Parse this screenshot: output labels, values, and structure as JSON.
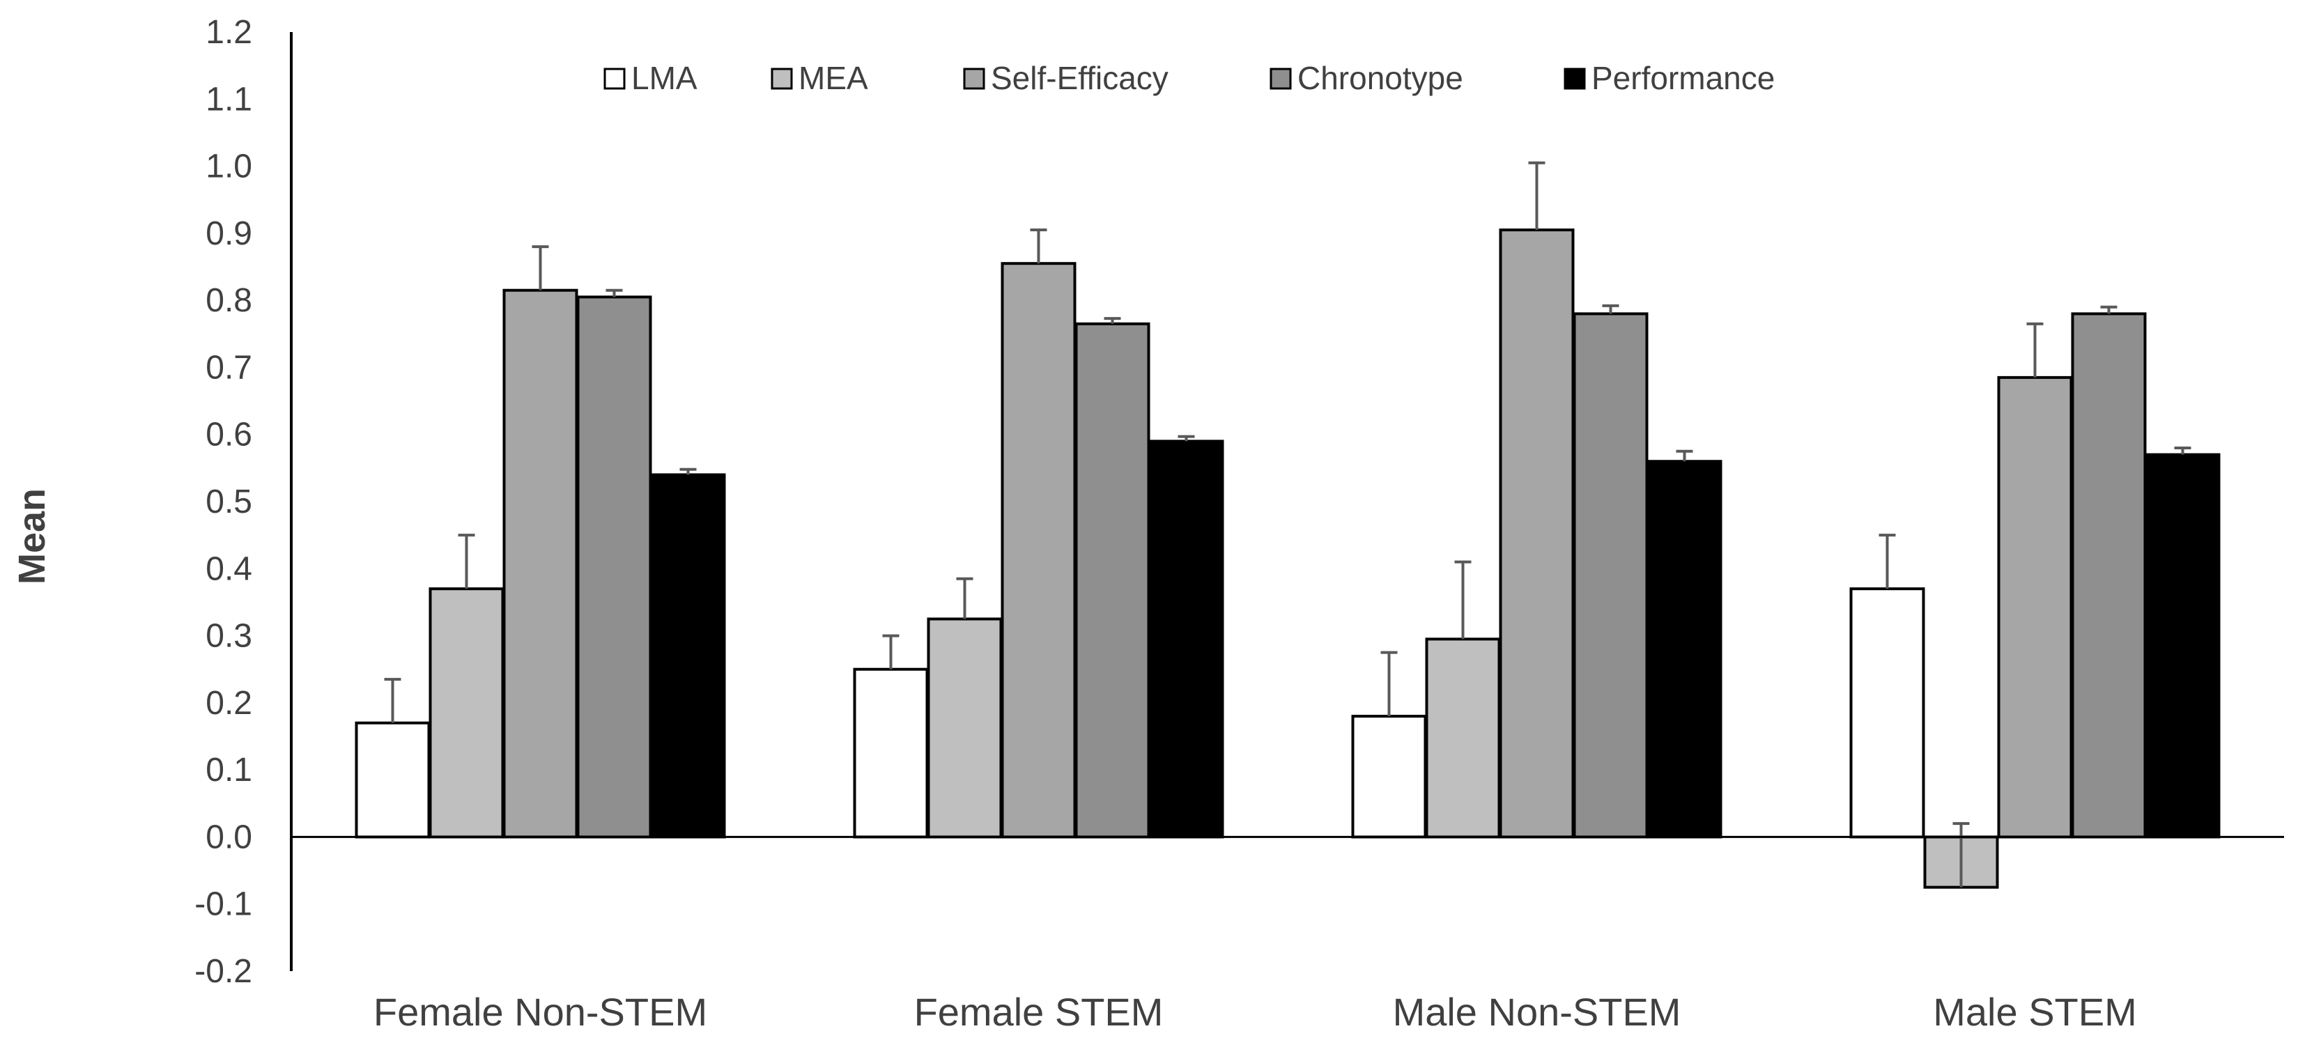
{
  "chart_data": {
    "type": "bar",
    "title": "",
    "xlabel": "",
    "ylabel": "Mean",
    "ylim": [
      -0.2,
      1.2
    ],
    "yticks": [
      "-0.2",
      "-0.1",
      "0.0",
      "0.1",
      "0.2",
      "0.3",
      "0.4",
      "0.5",
      "0.6",
      "0.7",
      "0.8",
      "0.9",
      "1.0",
      "1.1",
      "1.2"
    ],
    "grid": false,
    "legend_position": "top",
    "categories": [
      "Female Non-STEM",
      "Female STEM",
      "Male Non-STEM",
      "Male STEM"
    ],
    "series": [
      {
        "name": "LMA",
        "color": "#ffffff",
        "values": [
          0.17,
          0.25,
          0.18,
          0.37
        ],
        "errors": [
          0.065,
          0.05,
          0.095,
          0.08
        ]
      },
      {
        "name": "MEA",
        "color": "#bfbfbf",
        "values": [
          0.37,
          0.325,
          0.295,
          -0.075
        ],
        "errors": [
          0.08,
          0.06,
          0.115,
          0.095
        ]
      },
      {
        "name": "Self-Efficacy",
        "color": "#a6a6a6",
        "values": [
          0.815,
          0.855,
          0.905,
          0.685
        ],
        "errors": [
          0.065,
          0.05,
          0.1,
          0.08
        ]
      },
      {
        "name": "Chronotype",
        "color": "#8f8f8f",
        "values": [
          0.805,
          0.765,
          0.78,
          0.78
        ],
        "errors": [
          0.01,
          0.008,
          0.012,
          0.01
        ]
      },
      {
        "name": "Performance",
        "color": "#000000",
        "values": [
          0.54,
          0.59,
          0.56,
          0.57
        ],
        "errors": [
          0.008,
          0.007,
          0.015,
          0.01
        ]
      }
    ]
  }
}
